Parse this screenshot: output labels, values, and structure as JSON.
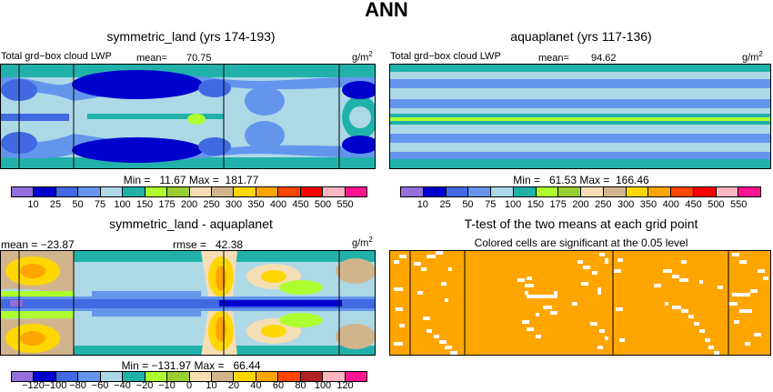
{
  "title": "ANN",
  "panels": [
    {
      "title": "symmetric_land (yrs 174-193)",
      "variable": "Total grd−box cloud LWP",
      "mean_label": "mean=",
      "mean": "70.75",
      "units": "g/m",
      "units_exp": "2",
      "min_max": "Min =   11.67 Max =  181.77"
    },
    {
      "title": "aquaplanet (yrs 117-136)",
      "variable": "Total grd−box cloud LWP",
      "mean_label": "mean=",
      "mean": "94.62",
      "units": "g/m",
      "units_exp": "2",
      "min_max": "Min =   61.53 Max =  166.46"
    },
    {
      "title": "symmetric_land - aquaplanet",
      "mean_text": "mean = −23.87",
      "rmse_text": "rmse =   42.38",
      "units": "g/m",
      "units_exp": "2",
      "min_max": "Min = −131.97 Max =   66.44"
    },
    {
      "title": "T-test of the two means at each grid point",
      "subtitle": "Colored cells are significant at the 0.05 level"
    }
  ],
  "colorbar_abs": {
    "labels": [
      "10",
      "25",
      "50",
      "75",
      "100",
      "150",
      "175",
      "200",
      "250",
      "300",
      "350",
      "400",
      "450",
      "500",
      "550"
    ],
    "colors": [
      "#9370db",
      "#0000cd",
      "#4169e1",
      "#6495ed",
      "#add8e6",
      "#20b2aa",
      "#adff2f",
      "#9acd32",
      "#f5deb3",
      "#d2b48c",
      "#ffd700",
      "#ffa500",
      "#ff4500",
      "#ff0000",
      "#ffb6c1",
      "#ff1493"
    ]
  },
  "colorbar_diff": {
    "labels": [
      "−120",
      "−100",
      "−80",
      "−60",
      "−40",
      "−20",
      "−10",
      "0",
      "10",
      "20",
      "40",
      "60",
      "80",
      "100",
      "120"
    ],
    "colors": [
      "#9370db",
      "#0000cd",
      "#4169e1",
      "#6495ed",
      "#add8e6",
      "#20b2aa",
      "#adff2f",
      "#9acd32",
      "#f5deb3",
      "#d2b48c",
      "#ffd700",
      "#ffa500",
      "#ff4500",
      "#b22222",
      "#ffb6c1",
      "#ff1493"
    ]
  },
  "chart_data": [
    {
      "type": "heatmap",
      "title": "symmetric_land (yrs 174-193)",
      "variable": "Total grd−box cloud LWP",
      "units": "g/m2",
      "mean": 70.75,
      "min": 11.67,
      "max": 181.77
    },
    {
      "type": "heatmap",
      "title": "aquaplanet (yrs 117-136)",
      "variable": "Total grd−box cloud LWP",
      "units": "g/m2",
      "mean": 94.62,
      "min": 61.53,
      "max": 166.46
    },
    {
      "type": "heatmap",
      "title": "symmetric_land - aquaplanet",
      "units": "g/m2",
      "mean": -23.87,
      "rmse": 42.38,
      "min": -131.97,
      "max": 66.44
    },
    {
      "type": "heatmap",
      "title": "T-test of the two means at each grid point",
      "subtitle": "Colored cells are significant at the 0.05 level"
    }
  ]
}
